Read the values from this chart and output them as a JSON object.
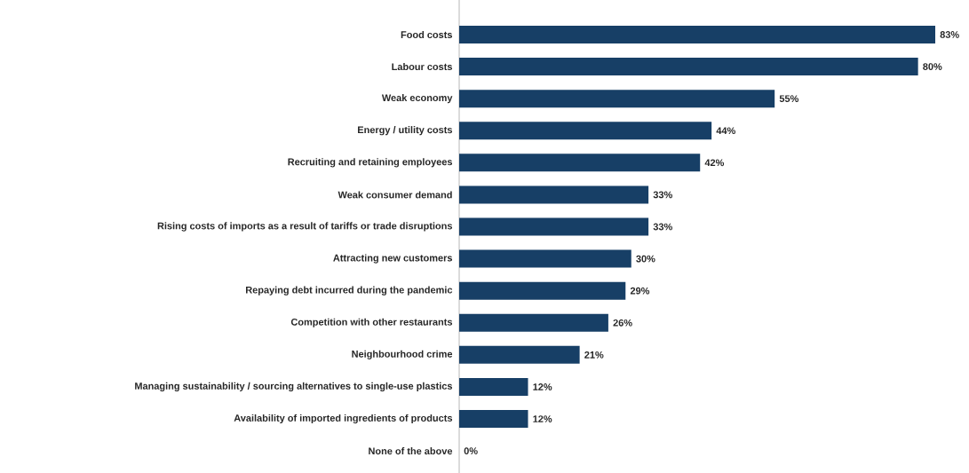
{
  "chart_data": {
    "type": "bar",
    "orientation": "horizontal",
    "categories": [
      "Food costs",
      "Labour costs",
      "Weak economy",
      "Energy / utility costs",
      "Recruiting and retaining employees",
      "Weak consumer demand",
      "Rising costs of imports as a result of tariffs or trade disruptions",
      "Attracting new customers",
      "Repaying debt incurred during the pandemic",
      "Competition with other restaurants",
      "Neighbourhood crime",
      "Managing sustainability / sourcing alternatives to single-use plastics",
      "Availability of imported ingredients of products",
      "None of the above"
    ],
    "values": [
      83,
      80,
      55,
      44,
      42,
      33,
      33,
      30,
      29,
      26,
      21,
      12,
      12,
      0
    ],
    "value_labels": [
      "83%",
      "80%",
      "55%",
      "44%",
      "42%",
      "33%",
      "33%",
      "30%",
      "29%",
      "26%",
      "21%",
      "12%",
      "12%",
      "0%"
    ],
    "color": "#173f66"
  }
}
